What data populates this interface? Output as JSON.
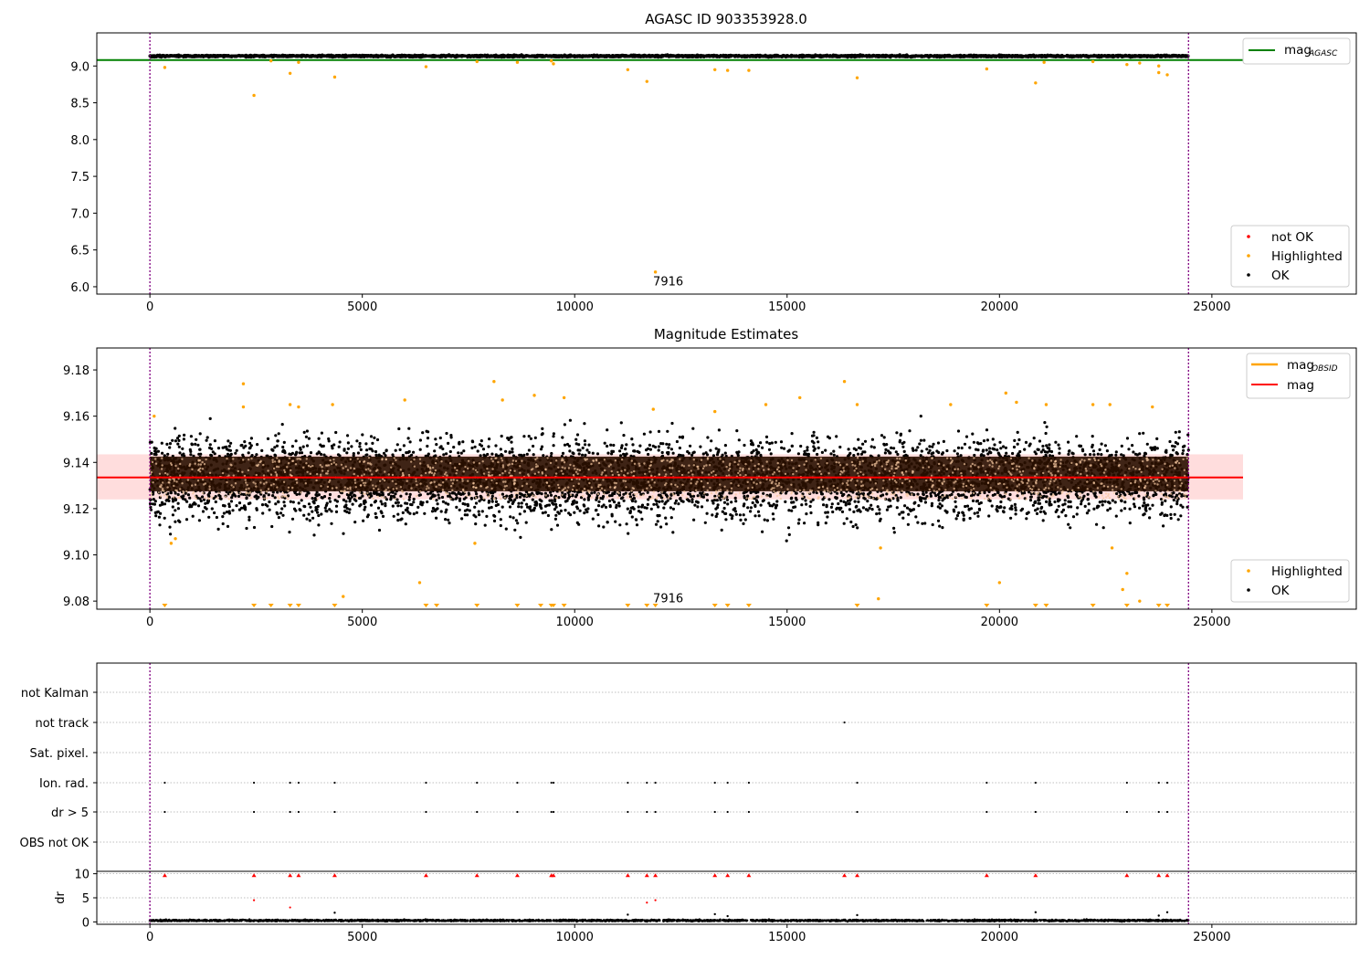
{
  "chart_data": [
    {
      "id": "agasc-panel",
      "type": "scatter",
      "title": "AGASC ID 903353928.0",
      "xlabel": "",
      "ylabel": "",
      "xlim": [
        -1250,
        28400
      ],
      "ylim": [
        5.9,
        9.45
      ],
      "xticks": [
        0,
        5000,
        10000,
        15000,
        20000,
        25000
      ],
      "yticks": [
        6.0,
        6.5,
        7.0,
        7.5,
        8.0,
        8.5,
        9.0
      ],
      "ytick_labels": [
        "6.0",
        "6.5",
        "7.0",
        "7.5",
        "8.0",
        "8.5",
        "9.0"
      ],
      "obs_boundaries": [
        0,
        24450
      ],
      "mag_agasc": 9.08,
      "ok_band": {
        "x0": 0,
        "x1": 24450,
        "center": 9.135,
        "spread": 0.012
      },
      "highlighted_points": [
        {
          "x": 350,
          "y": 8.98
        },
        {
          "x": 2450,
          "y": 8.6
        },
        {
          "x": 2850,
          "y": 9.07
        },
        {
          "x": 3300,
          "y": 8.9
        },
        {
          "x": 3500,
          "y": 9.05
        },
        {
          "x": 4350,
          "y": 8.85
        },
        {
          "x": 6500,
          "y": 8.99
        },
        {
          "x": 7700,
          "y": 9.06
        },
        {
          "x": 8650,
          "y": 9.05
        },
        {
          "x": 9450,
          "y": 9.07
        },
        {
          "x": 9500,
          "y": 9.03
        },
        {
          "x": 11250,
          "y": 8.95
        },
        {
          "x": 11700,
          "y": 8.79
        },
        {
          "x": 11900,
          "y": 6.2
        },
        {
          "x": 13300,
          "y": 8.95
        },
        {
          "x": 13600,
          "y": 8.94
        },
        {
          "x": 14100,
          "y": 8.94
        },
        {
          "x": 16650,
          "y": 8.84
        },
        {
          "x": 19700,
          "y": 8.96
        },
        {
          "x": 20850,
          "y": 8.77
        },
        {
          "x": 21050,
          "y": 9.05
        },
        {
          "x": 22200,
          "y": 9.06
        },
        {
          "x": 23000,
          "y": 9.02
        },
        {
          "x": 23300,
          "y": 9.04
        },
        {
          "x": 23750,
          "y": 8.91
        },
        {
          "x": 23750,
          "y": 9.0
        },
        {
          "x": 23950,
          "y": 8.88
        }
      ],
      "annotation": {
        "text": "7916",
        "x": 11900,
        "y": 6.02
      },
      "line_legend": [
        {
          "name": "mag",
          "sub": "AGASC",
          "color": "#008000"
        }
      ],
      "point_legend": [
        {
          "name": "not OK",
          "color": "#ff0000"
        },
        {
          "name": "Highlighted",
          "color": "#ffa500"
        },
        {
          "name": "OK",
          "color": "#000000"
        }
      ]
    },
    {
      "id": "mag-estimates-panel",
      "type": "scatter",
      "title": "Magnitude Estimates",
      "xlabel": "",
      "ylabel": "",
      "xlim": [
        -1250,
        28400
      ],
      "ylim": [
        9.0765,
        9.1895
      ],
      "xticks": [
        0,
        5000,
        10000,
        15000,
        20000,
        25000
      ],
      "yticks": [
        9.08,
        9.1,
        9.12,
        9.14,
        9.16,
        9.18
      ],
      "ytick_labels": [
        "9.08",
        "9.10",
        "9.12",
        "9.14",
        "9.16",
        "9.18"
      ],
      "obs_boundaries": [
        0,
        24450
      ],
      "mag": 9.1335,
      "mag_band": [
        9.124,
        9.1435
      ],
      "mag_obsid": {
        "x0": 0,
        "x1": 24450,
        "y": 9.133
      },
      "ok_band": {
        "x0": 0,
        "x1": 24450,
        "center": 9.133,
        "spread": 0.009
      },
      "highlighted_points": [
        {
          "x": 100,
          "y": 9.16
        },
        {
          "x": 500,
          "y": 9.105
        },
        {
          "x": 600,
          "y": 9.107
        },
        {
          "x": 2200,
          "y": 9.174
        },
        {
          "x": 2200,
          "y": 9.164
        },
        {
          "x": 3300,
          "y": 9.165
        },
        {
          "x": 3500,
          "y": 9.164
        },
        {
          "x": 4300,
          "y": 9.165
        },
        {
          "x": 4550,
          "y": 9.082
        },
        {
          "x": 6000,
          "y": 9.167
        },
        {
          "x": 6350,
          "y": 9.088
        },
        {
          "x": 7650,
          "y": 9.105
        },
        {
          "x": 8100,
          "y": 9.175
        },
        {
          "x": 8300,
          "y": 9.167
        },
        {
          "x": 9050,
          "y": 9.169
        },
        {
          "x": 9750,
          "y": 9.168
        },
        {
          "x": 11850,
          "y": 9.163
        },
        {
          "x": 13300,
          "y": 9.162
        },
        {
          "x": 14500,
          "y": 9.165
        },
        {
          "x": 15300,
          "y": 9.168
        },
        {
          "x": 16350,
          "y": 9.175
        },
        {
          "x": 16650,
          "y": 9.165
        },
        {
          "x": 17150,
          "y": 9.081
        },
        {
          "x": 17200,
          "y": 9.103
        },
        {
          "x": 18850,
          "y": 9.165
        },
        {
          "x": 20150,
          "y": 9.17
        },
        {
          "x": 20000,
          "y": 9.088
        },
        {
          "x": 20400,
          "y": 9.166
        },
        {
          "x": 21100,
          "y": 9.165
        },
        {
          "x": 22200,
          "y": 9.165
        },
        {
          "x": 22600,
          "y": 9.165
        },
        {
          "x": 22650,
          "y": 9.103
        },
        {
          "x": 22900,
          "y": 9.085
        },
        {
          "x": 23000,
          "y": 9.092
        },
        {
          "x": 23300,
          "y": 9.08
        },
        {
          "x": 23600,
          "y": 9.164
        }
      ],
      "clipped_low_x": [
        350,
        2450,
        2850,
        3300,
        3500,
        4350,
        6500,
        6750,
        7700,
        8650,
        9200,
        9450,
        9500,
        9750,
        11250,
        11700,
        11900,
        13300,
        13600,
        14100,
        16650,
        19700,
        20850,
        21100,
        22200,
        23000,
        23750,
        23950
      ],
      "annotation": {
        "text": "7916",
        "x": 11900,
        "y": 9.0795
      },
      "line_legend": [
        {
          "name": "mag",
          "sub": "OBSID",
          "color": "#ffa500"
        },
        {
          "name": "mag",
          "sub": "",
          "color": "#ff0000"
        }
      ],
      "point_legend": [
        {
          "name": "Highlighted",
          "color": "#ffa500"
        },
        {
          "name": "OK",
          "color": "#000000"
        }
      ]
    },
    {
      "id": "flags-panel",
      "type": "scatter",
      "title": "",
      "xlabel": "",
      "xlim": [
        -1250,
        28400
      ],
      "obs_boundaries": [
        0,
        24450
      ],
      "flag_rows": [
        "not Kalman",
        "not track",
        "Sat. pixel.",
        "Ion. rad.",
        "dr > 5",
        "OBS not OK"
      ],
      "flag_points": {
        "not track": [
          16350
        ],
        "Ion. rad.": [
          350,
          2450,
          3300,
          3500,
          4350,
          6500,
          7700,
          8650,
          9450,
          9500,
          11250,
          11700,
          11900,
          13300,
          13600,
          14100,
          16650,
          19700,
          20850,
          23000,
          23750,
          23950
        ],
        "dr > 5": [
          350,
          2450,
          3300,
          3500,
          4350,
          6500,
          7700,
          8650,
          9450,
          9500,
          11250,
          11700,
          11900,
          13300,
          13600,
          14100,
          16650,
          19700,
          20850,
          23000,
          23750,
          23950
        ]
      },
      "dr_ylabel": "dr",
      "dr_ylim": [
        -0.5,
        10.5
      ],
      "dr_yticks": [
        0,
        5,
        10
      ],
      "dr_ok_band": {
        "x0": 0,
        "x1": 24450,
        "center": 0.3,
        "spread": 0.15
      },
      "dr_not_ok_points": [
        {
          "x": 350,
          "y": 9.7
        },
        {
          "x": 2450,
          "y": 9.7
        },
        {
          "x": 2450,
          "y": 4.5
        },
        {
          "x": 3300,
          "y": 9.7
        },
        {
          "x": 3300,
          "y": 3.0
        },
        {
          "x": 3500,
          "y": 9.7
        },
        {
          "x": 4350,
          "y": 9.7
        },
        {
          "x": 6500,
          "y": 9.7
        },
        {
          "x": 7700,
          "y": 9.7
        },
        {
          "x": 8650,
          "y": 9.7
        },
        {
          "x": 9450,
          "y": 9.7
        },
        {
          "x": 9500,
          "y": 9.7
        },
        {
          "x": 11250,
          "y": 9.7
        },
        {
          "x": 11700,
          "y": 9.7
        },
        {
          "x": 11700,
          "y": 4.0
        },
        {
          "x": 11900,
          "y": 9.7
        },
        {
          "x": 11900,
          "y": 4.5
        },
        {
          "x": 13300,
          "y": 9.7
        },
        {
          "x": 13600,
          "y": 9.7
        },
        {
          "x": 14100,
          "y": 9.7
        },
        {
          "x": 16350,
          "y": 9.7
        },
        {
          "x": 16650,
          "y": 9.7
        },
        {
          "x": 19700,
          "y": 9.7
        },
        {
          "x": 20850,
          "y": 9.7
        },
        {
          "x": 23000,
          "y": 9.7
        },
        {
          "x": 23750,
          "y": 9.7
        },
        {
          "x": 23950,
          "y": 9.7
        }
      ],
      "dr_ok_outliers": [
        {
          "x": 4350,
          "y": 1.9
        },
        {
          "x": 11250,
          "y": 1.5
        },
        {
          "x": 13300,
          "y": 1.6
        },
        {
          "x": 13600,
          "y": 1.2
        },
        {
          "x": 16650,
          "y": 1.4
        },
        {
          "x": 20850,
          "y": 2.0
        },
        {
          "x": 23750,
          "y": 1.3
        },
        {
          "x": 23950,
          "y": 2.0
        }
      ],
      "xticks": [
        0,
        5000,
        10000,
        15000,
        20000,
        25000
      ]
    }
  ]
}
